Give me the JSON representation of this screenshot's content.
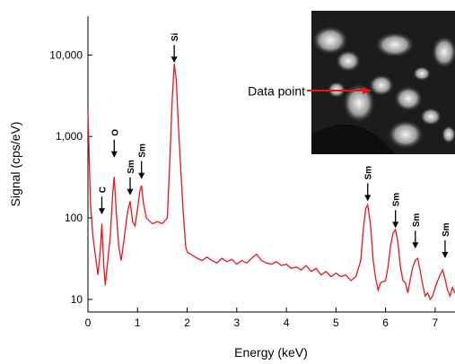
{
  "chart_data": {
    "type": "line",
    "x_label": "Energy (keV)",
    "y_label": "Signal (cps/eV)",
    "yscale": "log",
    "xlim": [
      0,
      7.4
    ],
    "ylim": [
      7,
      30000
    ],
    "xticks": [
      0,
      1,
      2,
      3,
      4,
      5,
      6,
      7
    ],
    "yticks": [
      10,
      100,
      {
        "value": 1000,
        "label": "1,000"
      },
      {
        "value": 10000,
        "label": "10,000"
      }
    ],
    "color": "#e8161a",
    "x": [
      0,
      0.05,
      0.1,
      0.15,
      0.2,
      0.25,
      0.28,
      0.32,
      0.35,
      0.4,
      0.45,
      0.5,
      0.53,
      0.57,
      0.62,
      0.67,
      0.72,
      0.8,
      0.85,
      0.9,
      0.95,
      1.0,
      1.05,
      1.08,
      1.12,
      1.18,
      1.25,
      1.3,
      1.4,
      1.5,
      1.6,
      1.65,
      1.7,
      1.74,
      1.78,
      1.82,
      1.87,
      1.92,
      1.97,
      2.0,
      2.1,
      2.2,
      2.3,
      2.4,
      2.5,
      2.6,
      2.7,
      2.8,
      2.9,
      3.0,
      3.1,
      3.2,
      3.3,
      3.4,
      3.5,
      3.6,
      3.7,
      3.8,
      3.9,
      4.0,
      4.1,
      4.2,
      4.3,
      4.4,
      4.5,
      4.6,
      4.7,
      4.8,
      4.9,
      5.0,
      5.1,
      5.2,
      5.3,
      5.4,
      5.5,
      5.55,
      5.6,
      5.64,
      5.7,
      5.75,
      5.8,
      5.85,
      5.9,
      6.0,
      6.05,
      6.1,
      6.15,
      6.2,
      6.25,
      6.3,
      6.35,
      6.4,
      6.45,
      6.5,
      6.55,
      6.6,
      6.65,
      6.7,
      6.75,
      6.8,
      6.85,
      6.9,
      6.95,
      7.0,
      7.05,
      7.1,
      7.15,
      7.2,
      7.25,
      7.3,
      7.35,
      7.4
    ],
    "values": [
      2000,
      150,
      60,
      35,
      20,
      40,
      85,
      25,
      15,
      30,
      60,
      200,
      320,
      120,
      45,
      30,
      50,
      120,
      160,
      90,
      80,
      130,
      220,
      250,
      150,
      100,
      90,
      85,
      90,
      85,
      100,
      500,
      3000,
      7800,
      5000,
      1500,
      400,
      120,
      45,
      38,
      35,
      32,
      30,
      33,
      30,
      28,
      32,
      29,
      31,
      27,
      30,
      28,
      32,
      36,
      30,
      28,
      27,
      29,
      26,
      27,
      24,
      25,
      23,
      26,
      22,
      24,
      20,
      22,
      19,
      21,
      19,
      20,
      17,
      19,
      30,
      70,
      130,
      145,
      80,
      30,
      18,
      13,
      16,
      17,
      25,
      45,
      65,
      72,
      50,
      25,
      17,
      16,
      12,
      18,
      25,
      30,
      32,
      22,
      15,
      11,
      12,
      10,
      11,
      14,
      17,
      20,
      23,
      18,
      13,
      11,
      14,
      12
    ],
    "annotations": [
      {
        "text": "C",
        "x": 0.28,
        "y": 110
      },
      {
        "text": "O",
        "x": 0.53,
        "y": 550
      },
      {
        "text": "Sm",
        "x": 0.85,
        "y": 190
      },
      {
        "text": "Sm",
        "x": 1.08,
        "y": 300
      },
      {
        "text": "Si",
        "x": 1.74,
        "y": 8000
      },
      {
        "text": "Sm",
        "x": 5.64,
        "y": 160
      },
      {
        "text": "Sm",
        "x": 6.2,
        "y": 75
      },
      {
        "text": "Sm",
        "x": 6.6,
        "y": 42
      },
      {
        "text": "Sm",
        "x": 7.2,
        "y": 32
      }
    ],
    "inset_label": "Data point"
  }
}
